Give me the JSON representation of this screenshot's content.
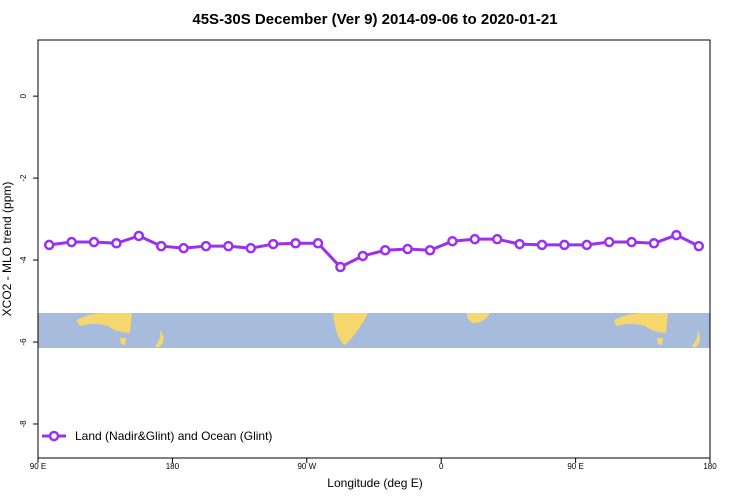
{
  "chart_data": {
    "type": "line",
    "title": "45S-30S December (Ver 9)   2014-09-06 to 2020-01-21",
    "x_label": "Longitude (deg E)",
    "y_label": "XCO2 - MLO trend (ppm)",
    "x": [
      97.5,
      112.5,
      127.5,
      142.5,
      157.5,
      172.5,
      187.5,
      202.5,
      217.5,
      232.5,
      247.5,
      262.5,
      277.5,
      292.5,
      307.5,
      322.5,
      337.5,
      352.5,
      367.5,
      382.5,
      397.5,
      412.5,
      427.5,
      442.5,
      457.5,
      472.5,
      487.5,
      502.5,
      517.5,
      532.5
    ],
    "series": [
      {
        "name": "Land (Nadir&Glint) and Ocean (Glint)",
        "color": "#9b30f0",
        "values": [
          -3.63,
          -3.56,
          -3.56,
          -3.59,
          -3.41,
          -3.66,
          -3.71,
          -3.66,
          -3.66,
          -3.71,
          -3.61,
          -3.59,
          -3.59,
          -4.17,
          -3.9,
          -3.76,
          -3.73,
          -3.76,
          -3.54,
          -3.49,
          -3.49,
          -3.61,
          -3.63,
          -3.63,
          -3.63,
          -3.56,
          -3.56,
          -3.59,
          -3.39,
          -3.66
        ]
      }
    ],
    "xlim": [
      90,
      540
    ],
    "xticks": [
      {
        "value": 90,
        "label": "90 E"
      },
      180,
      {
        "value": 270,
        "label": "90 W"
      },
      {
        "value": 360,
        "label": "0"
      },
      {
        "value": 450,
        "label": "90 E"
      },
      {
        "value": 540,
        "label": "180"
      }
    ],
    "ylim": [
      -8.83,
      1.37
    ],
    "yticks": [
      0,
      -2,
      -4,
      -6,
      -8
    ],
    "legend": "bottom-left"
  }
}
